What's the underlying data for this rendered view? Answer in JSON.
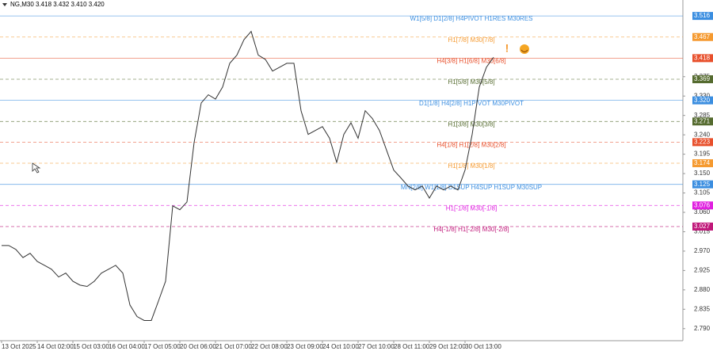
{
  "chart_data": {
    "type": "line",
    "title": "NG,M30  3.418 3.432 3.410 3.420",
    "categories": [
      "13 Oct 2025",
      null,
      null,
      null,
      null,
      "14 Oct 02:00",
      null,
      null,
      null,
      null,
      "15 Oct 03:00",
      null,
      null,
      null,
      null,
      "16 Oct 04:00",
      null,
      null,
      null,
      null,
      "17 Oct 05:00",
      null,
      null,
      null,
      null,
      "20 Oct 06:00",
      null,
      null,
      null,
      null,
      "21 Oct 07:00",
      null,
      null,
      null,
      null,
      "22 Oct 08:00",
      null,
      null,
      null,
      null,
      "23 Oct 09:00",
      null,
      null,
      null,
      null,
      "24 Oct 10:00",
      null,
      null,
      null,
      null,
      "27 Oct 10:00",
      null,
      null,
      null,
      null,
      "28 Oct 11:00",
      null,
      null,
      null,
      null,
      "29 Oct 12:00",
      null,
      null,
      null,
      null,
      "30 Oct 13:00",
      null,
      null,
      null,
      null
    ],
    "series": [
      {
        "name": "NG,M30",
        "color": "#333333",
        "values": [
          2.983,
          2.983,
          2.974,
          2.955,
          2.965,
          2.946,
          2.937,
          2.928,
          2.91,
          2.919,
          2.9,
          2.891,
          2.888,
          2.9,
          2.919,
          2.928,
          2.937,
          2.919,
          2.845,
          2.818,
          2.809,
          2.809,
          2.854,
          2.9,
          3.075,
          3.066,
          3.084,
          3.222,
          3.314,
          3.333,
          3.323,
          3.351,
          3.406,
          3.425,
          3.461,
          3.48,
          3.425,
          3.415,
          3.388,
          3.397,
          3.406,
          3.406,
          3.296,
          3.241,
          3.25,
          3.259,
          3.232,
          3.176,
          3.241,
          3.268,
          3.232,
          3.296,
          3.278,
          3.25,
          3.204,
          3.158,
          3.14,
          3.121,
          3.112,
          3.121,
          3.093,
          3.121,
          3.112,
          3.121,
          3.112,
          3.158,
          3.241,
          3.351,
          3.397,
          3.42
        ]
      }
    ],
    "ylim": [
      2.762,
      3.553
    ],
    "yticks": [
      3.375,
      {
        "value": 3.33,
        "label": "3.330"
      },
      3.285,
      {
        "value": 3.24,
        "label": "3.240"
      },
      3.195,
      {
        "value": 3.15,
        "label": "3.150"
      },
      3.105,
      {
        "value": 3.06,
        "label": "3.060"
      },
      3.015,
      {
        "value": 2.97,
        "label": "2.970"
      },
      2.925,
      {
        "value": 2.88,
        "label": "2.880"
      },
      2.835,
      {
        "value": 2.79,
        "label": "2.790"
      }
    ],
    "levels": [
      {
        "label": "W1[5/8] D1[2/8] H4PIVOT H1RES M30RES",
        "price": 3.516,
        "color": "#3b8ee0",
        "dashed": false
      },
      {
        "label": "H1[7/8] M30[7/8]",
        "price": 3.467,
        "color": "#f59a30",
        "dashed": true
      },
      {
        "label": "H4[3/8] H1[6/8] M30[6/8]",
        "price": 3.418,
        "color": "#e8502c",
        "dashed": false
      },
      {
        "label": "H1[5/8] M30[5/8]",
        "price": 3.369,
        "color": "#556b2f",
        "dashed": true
      },
      {
        "label": "D1[1/8] H4[2/8] H1PIVOT M30PIVOT",
        "price": {
          "value": 3.32,
          "label": "3.320"
        },
        "color": "#3b8ee0",
        "dashed": false
      },
      {
        "label": "H1[3/8] M30[3/8]",
        "price": 3.271,
        "color": "#556b2f",
        "dashed": true
      },
      {
        "label": "H4[1/8] H1[2/8] M30[2/8]",
        "price": 3.223,
        "color": "#e8502c",
        "dashed": true
      },
      {
        "label": "H1[1/8] M30[1/8]",
        "price": 3.174,
        "color": "#f59a30",
        "dashed": true
      },
      {
        "label": "MN[2/8] W1[1/8] D1SUP H4SUP H1SUP M30SUP",
        "price": 3.125,
        "color": "#3b8ee0",
        "dashed": false
      },
      {
        "label": "H1[-1/8] M30[-1/8]",
        "price": 3.076,
        "color": "#e020e0",
        "dashed": true
      },
      {
        "label": "H4[-1/8] H1[-2/8] M30[-2/8]",
        "price": 3.027,
        "color": "#c0187a",
        "dashed": true
      }
    ]
  }
}
